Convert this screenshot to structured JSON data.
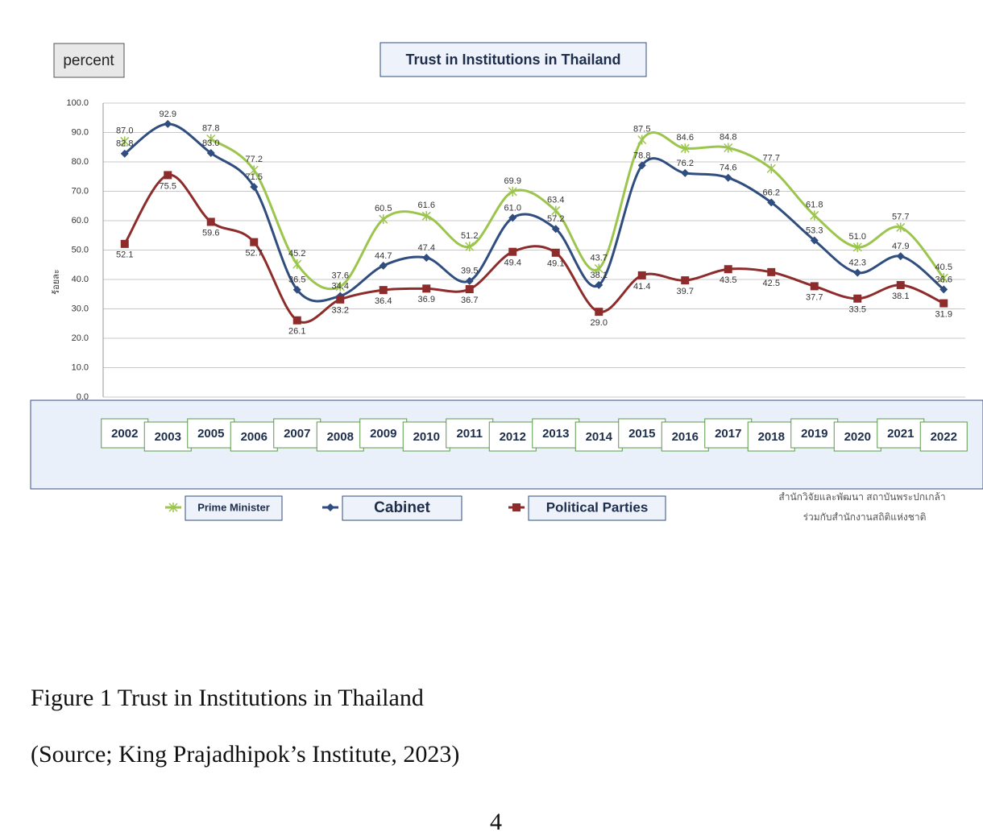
{
  "chart_data": {
    "type": "line",
    "title": "Trust in Institutions in Thailand",
    "unit_label": "percent",
    "y_axis_label": "ร้อยละ",
    "categories": [
      "2002",
      "2003",
      "2005",
      "2006",
      "2007",
      "2008",
      "2009",
      "2010",
      "2011",
      "2012",
      "2013",
      "2014",
      "2015",
      "2016",
      "2017",
      "2018",
      "2019",
      "2020",
      "2021",
      "2022"
    ],
    "series": [
      {
        "name": "Prime Minister",
        "color": "#9cc54e",
        "marker": "star",
        "values": [
          87.0,
          null,
          87.8,
          77.2,
          45.2,
          37.6,
          60.5,
          61.6,
          51.2,
          69.9,
          63.4,
          43.7,
          87.5,
          84.6,
          84.8,
          77.7,
          61.8,
          51.0,
          57.7,
          40.5
        ],
        "value_labels": [
          "87.0",
          null,
          "87.8",
          "77.2",
          "45.2",
          "37.6",
          "60.5",
          "61.6",
          "51.2",
          "69.9",
          "63.4",
          "43.7",
          "87.5",
          "84.6",
          "84.8",
          "77.7",
          "61.8",
          "51.0",
          "57.7",
          "40.5"
        ]
      },
      {
        "name": "Cabinet",
        "color": "#2f4d7e",
        "marker": "diamond",
        "values": [
          82.8,
          92.9,
          83.0,
          71.5,
          36.5,
          34.4,
          44.7,
          47.4,
          39.5,
          61.0,
          57.2,
          38.1,
          78.8,
          76.2,
          74.6,
          66.2,
          53.3,
          42.3,
          47.9,
          36.6
        ],
        "value_labels": [
          "82.8",
          "92.9",
          "83.0",
          "71.5",
          "36.5",
          "34.4",
          "44.7",
          "47.4",
          "39.5",
          "61.0",
          "57.2",
          "38.1",
          "78.8",
          "76.2",
          "74.6",
          "66.2",
          "53.3",
          "42.3",
          "47.9",
          "36.6"
        ]
      },
      {
        "name": "Political Parties",
        "color": "#8e2b2b",
        "marker": "square",
        "values": [
          52.1,
          75.5,
          59.6,
          52.7,
          26.1,
          33.2,
          36.4,
          36.9,
          36.7,
          49.4,
          49.1,
          29.0,
          41.4,
          39.7,
          43.5,
          42.5,
          37.7,
          33.5,
          38.1,
          31.9
        ],
        "value_labels": [
          "52.1",
          "75.5",
          "59.6",
          "52.7",
          "26.1",
          "33.2",
          "36.4",
          "36.9",
          "36.7",
          "49.4",
          "49.1",
          "29.0",
          "41.4",
          "39.7",
          "43.5",
          "42.5",
          "37.7",
          "33.5",
          "38.1",
          "31.9"
        ]
      }
    ],
    "ylim": [
      0,
      100
    ],
    "yticks": [
      {
        "value": 0,
        "label": "0.0"
      },
      {
        "value": 10,
        "label": "10.0"
      },
      {
        "value": 20,
        "label": "20.0"
      },
      {
        "value": 30,
        "label": "30.0"
      },
      {
        "value": 40,
        "label": "40.0"
      },
      {
        "value": 50,
        "label": "50.0"
      },
      {
        "value": 60,
        "label": "60.0"
      },
      {
        "value": 70,
        "label": "70.0"
      },
      {
        "value": 80,
        "label": "80.0"
      },
      {
        "value": 90,
        "label": "90.0"
      },
      {
        "value": 100,
        "label": "100.0"
      }
    ],
    "grid": true,
    "legend": "bottom",
    "source_note": [
      "สำนักวิจัยและพัฒนา สถาบันพระปกเกล้า",
      "ร่วมกับสำนักงานสถิติแห่งชาติ"
    ]
  },
  "caption": "Figure 1 Trust in Institutions  in Thailand",
  "source": "(Source; King Prajadhipok’s Institute, 2023)",
  "page_number": "4"
}
